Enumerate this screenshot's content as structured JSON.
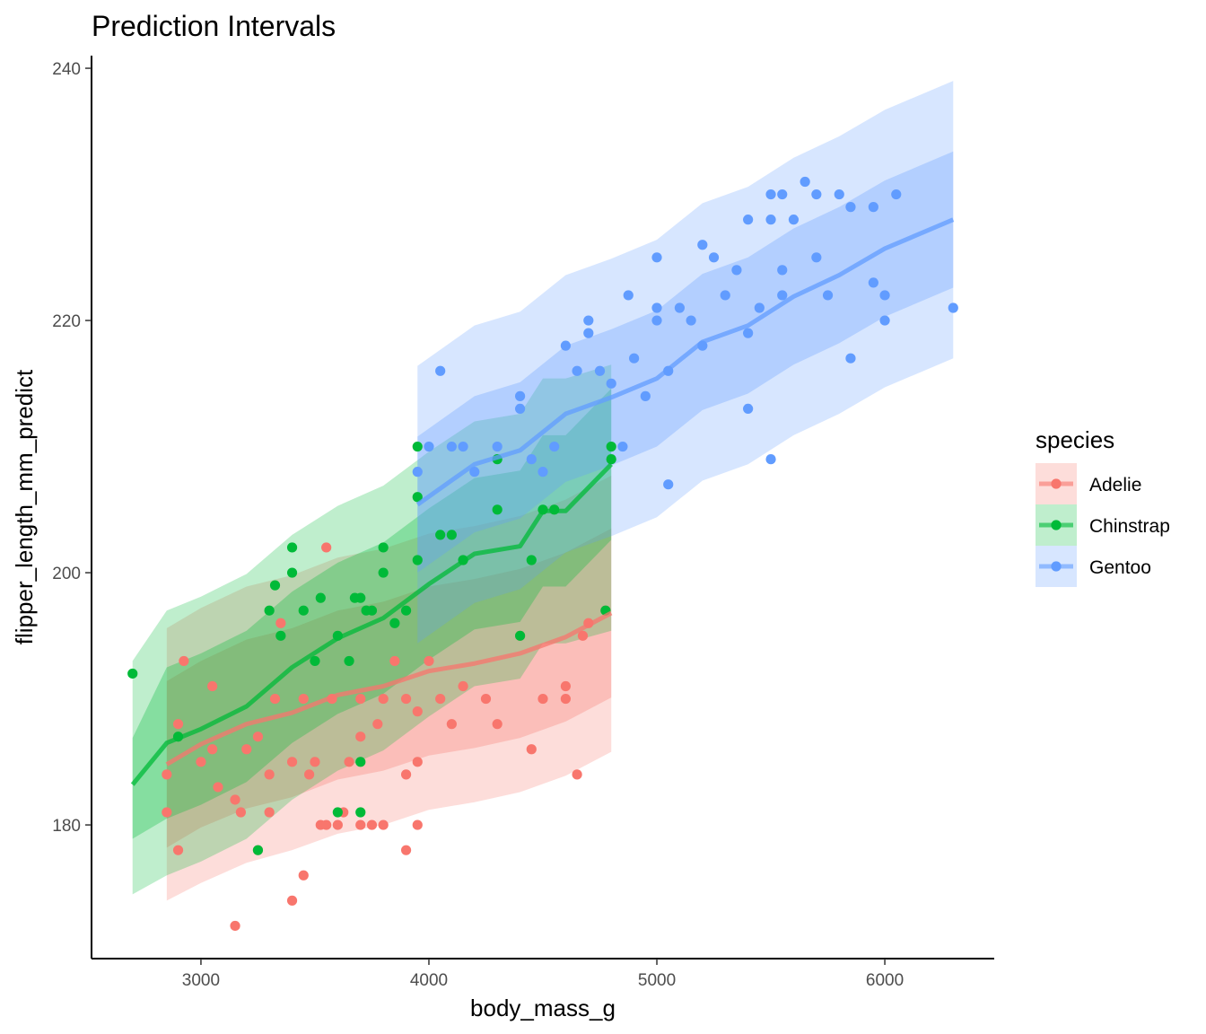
{
  "chart_data": {
    "type": "scatter",
    "title": "Prediction Intervals",
    "xlabel": "body_mass_g",
    "ylabel": "flipper_length_mm_predict",
    "xlim": [
      2520,
      6480
    ],
    "ylim": [
      169.4,
      241.0
    ],
    "xticks": [
      3000,
      4000,
      5000,
      6000
    ],
    "yticks": [
      180,
      200,
      220,
      240
    ],
    "grid": false,
    "legend": {
      "title": "species",
      "position": "right",
      "entries": [
        "Adelie",
        "Chinstrap",
        "Gentoo"
      ]
    },
    "series": [
      {
        "name": "Adelie",
        "color": "#F8766D",
        "fit": {
          "x": [
            2850,
            3000,
            3200,
            3400,
            3600,
            3800,
            4000,
            4200,
            4400,
            4600,
            4800
          ],
          "y": [
            184.8,
            186.4,
            188.0,
            188.9,
            190.3,
            191.0,
            192.2,
            192.8,
            193.6,
            194.9,
            196.8
          ]
        },
        "band_inner": {
          "lo": [
            178.2,
            179.8,
            181.3,
            182.2,
            183.6,
            184.3,
            185.5,
            186.1,
            186.9,
            188.2,
            190.1
          ],
          "hi": [
            191.4,
            193.0,
            194.7,
            195.6,
            197.0,
            197.7,
            198.9,
            199.5,
            200.3,
            201.6,
            203.5
          ]
        },
        "band_outer": {
          "lo": [
            174.0,
            175.4,
            177.0,
            178.0,
            179.3,
            180.0,
            181.2,
            181.8,
            182.6,
            183.9,
            185.8
          ],
          "hi": [
            195.6,
            197.2,
            198.9,
            199.8,
            201.2,
            201.9,
            203.1,
            203.7,
            204.5,
            205.8,
            207.7
          ]
        },
        "points": [
          [
            2850,
            184
          ],
          [
            2850,
            181
          ],
          [
            2900,
            178
          ],
          [
            2900,
            188
          ],
          [
            2925,
            193
          ],
          [
            3000,
            185
          ],
          [
            3050,
            186
          ],
          [
            3050,
            191
          ],
          [
            3075,
            183
          ],
          [
            3150,
            172
          ],
          [
            3150,
            182
          ],
          [
            3175,
            181
          ],
          [
            3200,
            186
          ],
          [
            3250,
            187
          ],
          [
            3250,
            178
          ],
          [
            3300,
            184
          ],
          [
            3300,
            181
          ],
          [
            3325,
            190
          ],
          [
            3400,
            174
          ],
          [
            3400,
            185
          ],
          [
            3450,
            176
          ],
          [
            3450,
            190
          ],
          [
            3475,
            184
          ],
          [
            3500,
            185
          ],
          [
            3525,
            180
          ],
          [
            3550,
            202
          ],
          [
            3550,
            180
          ],
          [
            3575,
            190
          ],
          [
            3600,
            180
          ],
          [
            3625,
            181
          ],
          [
            3650,
            185
          ],
          [
            3700,
            180
          ],
          [
            3700,
            190
          ],
          [
            3750,
            180
          ],
          [
            3775,
            188
          ],
          [
            3800,
            180
          ],
          [
            3800,
            190
          ],
          [
            3850,
            193
          ],
          [
            3900,
            178
          ],
          [
            3900,
            184
          ],
          [
            3950,
            180
          ],
          [
            3950,
            185
          ],
          [
            3950,
            189
          ],
          [
            4000,
            193
          ],
          [
            4050,
            190
          ],
          [
            4100,
            188
          ],
          [
            4150,
            191
          ],
          [
            4250,
            190
          ],
          [
            4300,
            188
          ],
          [
            4400,
            195
          ],
          [
            4450,
            186
          ],
          [
            4500,
            190
          ],
          [
            4600,
            191
          ],
          [
            4600,
            190
          ],
          [
            4650,
            184
          ],
          [
            4675,
            195
          ],
          [
            4700,
            196
          ],
          [
            4775,
            197
          ],
          [
            3350,
            196
          ],
          [
            3700,
            187
          ],
          [
            3900,
            190
          ]
        ]
      },
      {
        "name": "Chinstrap",
        "color": "#00BA38",
        "fit": {
          "x": [
            2700,
            2850,
            3000,
            3200,
            3400,
            3600,
            3800,
            4000,
            4200,
            4400,
            4500,
            4600,
            4800
          ],
          "y": [
            183.2,
            186.5,
            187.6,
            189.4,
            192.5,
            194.8,
            196.4,
            199.1,
            201.5,
            202.1,
            204.9,
            204.9,
            208.6
          ]
        },
        "band_inner": {
          "lo": [
            178.9,
            180.5,
            181.6,
            183.4,
            186.5,
            188.8,
            190.4,
            193.1,
            195.5,
            196.1,
            198.9,
            198.9,
            202.6
          ],
          "hi": [
            186.9,
            192.5,
            193.6,
            195.4,
            198.5,
            200.8,
            202.4,
            205.1,
            207.5,
            208.1,
            210.9,
            210.9,
            214.6
          ]
        },
        "band_outer": {
          "lo": [
            174.5,
            176.0,
            177.1,
            178.9,
            182.0,
            184.3,
            185.9,
            188.6,
            191.0,
            191.6,
            194.4,
            194.4,
            195.4
          ],
          "hi": [
            193.0,
            197.0,
            198.1,
            199.9,
            203.0,
            205.3,
            206.9,
            209.6,
            212.0,
            212.6,
            215.4,
            215.4,
            216.5
          ]
        },
        "points": [
          [
            2700,
            192
          ],
          [
            2900,
            187
          ],
          [
            3250,
            178
          ],
          [
            3300,
            197
          ],
          [
            3325,
            199
          ],
          [
            3350,
            195
          ],
          [
            3400,
            202
          ],
          [
            3400,
            200
          ],
          [
            3450,
            197
          ],
          [
            3500,
            193
          ],
          [
            3525,
            198
          ],
          [
            3600,
            181
          ],
          [
            3600,
            195
          ],
          [
            3650,
            193
          ],
          [
            3675,
            198
          ],
          [
            3700,
            185
          ],
          [
            3700,
            181
          ],
          [
            3700,
            198
          ],
          [
            3725,
            197
          ],
          [
            3750,
            197
          ],
          [
            3800,
            202
          ],
          [
            3800,
            200
          ],
          [
            3850,
            196
          ],
          [
            3900,
            197
          ],
          [
            3950,
            210
          ],
          [
            3950,
            206
          ],
          [
            3950,
            201
          ],
          [
            4050,
            203
          ],
          [
            4100,
            203
          ],
          [
            4150,
            201
          ],
          [
            4300,
            209
          ],
          [
            4300,
            205
          ],
          [
            4400,
            195
          ],
          [
            4450,
            201
          ],
          [
            4500,
            205
          ],
          [
            4550,
            205
          ],
          [
            4800,
            210
          ],
          [
            4800,
            209
          ],
          [
            4775,
            197
          ]
        ]
      },
      {
        "name": "Gentoo",
        "color": "#619CFF",
        "fit": {
          "x": [
            3950,
            4200,
            4400,
            4600,
            4800,
            5000,
            5200,
            5400,
            5600,
            5800,
            6000,
            6300
          ],
          "y": [
            205.4,
            208.6,
            209.7,
            212.6,
            213.9,
            215.4,
            218.3,
            219.6,
            221.9,
            223.6,
            225.7,
            228.0
          ]
        },
        "band_inner": {
          "lo": [
            200.0,
            203.2,
            204.3,
            207.2,
            208.5,
            210.0,
            212.9,
            214.2,
            216.5,
            218.2,
            220.3,
            222.6
          ],
          "hi": [
            210.8,
            214.0,
            215.1,
            218.0,
            219.3,
            220.8,
            223.7,
            225.0,
            227.3,
            229.0,
            231.1,
            233.4
          ]
        },
        "band_outer": {
          "lo": [
            194.4,
            197.6,
            198.7,
            201.6,
            202.9,
            204.4,
            207.3,
            208.6,
            210.9,
            212.6,
            214.7,
            217.0
          ],
          "hi": [
            216.4,
            219.6,
            220.7,
            223.6,
            224.9,
            226.4,
            229.3,
            230.6,
            232.9,
            234.6,
            236.7,
            239.0
          ]
        },
        "points": [
          [
            3950,
            208
          ],
          [
            4000,
            210
          ],
          [
            4050,
            216
          ],
          [
            4100,
            210
          ],
          [
            4150,
            210
          ],
          [
            4200,
            208
          ],
          [
            4300,
            210
          ],
          [
            4400,
            214
          ],
          [
            4400,
            213
          ],
          [
            4450,
            209
          ],
          [
            4500,
            208
          ],
          [
            4550,
            210
          ],
          [
            4600,
            218
          ],
          [
            4650,
            216
          ],
          [
            4700,
            219
          ],
          [
            4700,
            220
          ],
          [
            4750,
            216
          ],
          [
            4800,
            215
          ],
          [
            4850,
            210
          ],
          [
            4875,
            222
          ],
          [
            4900,
            217
          ],
          [
            4950,
            214
          ],
          [
            5000,
            225
          ],
          [
            5000,
            221
          ],
          [
            5000,
            220
          ],
          [
            5050,
            207
          ],
          [
            5100,
            221
          ],
          [
            5150,
            220
          ],
          [
            5200,
            226
          ],
          [
            5200,
            218
          ],
          [
            5250,
            225
          ],
          [
            5300,
            222
          ],
          [
            5350,
            224
          ],
          [
            5400,
            228
          ],
          [
            5400,
            213
          ],
          [
            5450,
            221
          ],
          [
            5500,
            230
          ],
          [
            5500,
            228
          ],
          [
            5500,
            209
          ],
          [
            5550,
            230
          ],
          [
            5550,
            224
          ],
          [
            5600,
            228
          ],
          [
            5650,
            231
          ],
          [
            5700,
            230
          ],
          [
            5700,
            225
          ],
          [
            5750,
            222
          ],
          [
            5800,
            230
          ],
          [
            5850,
            229
          ],
          [
            5850,
            217
          ],
          [
            5950,
            229
          ],
          [
            6000,
            222
          ],
          [
            6000,
            220
          ],
          [
            6050,
            230
          ],
          [
            6300,
            221
          ],
          [
            5950,
            223
          ],
          [
            5050,
            216
          ],
          [
            5400,
            219
          ],
          [
            5550,
            222
          ]
        ]
      }
    ]
  }
}
